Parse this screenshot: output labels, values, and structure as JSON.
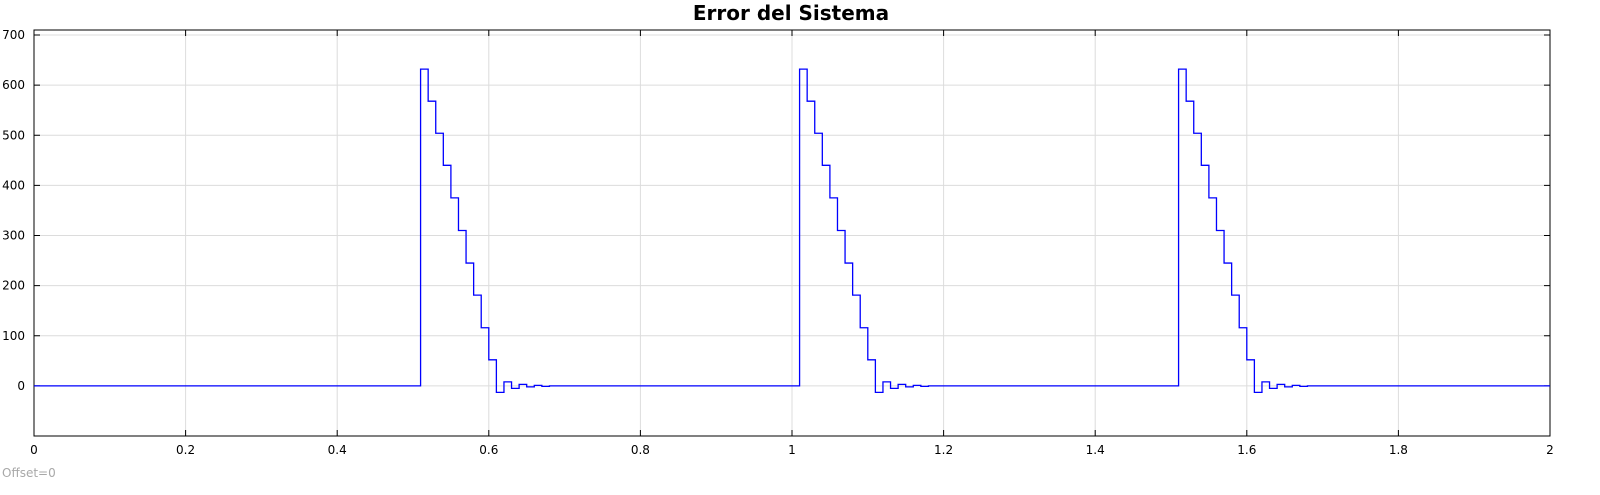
{
  "chart_data": {
    "type": "line",
    "title": "Error del Sistema",
    "xlabel": "",
    "ylabel": "",
    "xlim": [
      0,
      2
    ],
    "ylim": [
      -100,
      710
    ],
    "x_ticks": [
      0,
      0.2,
      0.4,
      0.6,
      0.8,
      1,
      1.2,
      1.4,
      1.6,
      1.8,
      2
    ],
    "x_tick_labels": [
      "0",
      "0.2",
      "0.4",
      "0.6",
      "0.8",
      "1",
      "1.2",
      "1.4",
      "1.6",
      "1.8",
      "2"
    ],
    "y_ticks": [
      0,
      100,
      200,
      300,
      400,
      500,
      600,
      700
    ],
    "y_tick_labels": [
      "0",
      "100",
      "200",
      "300",
      "400",
      "500",
      "600",
      "700"
    ],
    "grid": true,
    "legend": "none",
    "step": true,
    "offset_note": "Offset=0",
    "series": [
      {
        "color": "#0000ff",
        "x": [
          0,
          0.51,
          0.52,
          0.53,
          0.54,
          0.55,
          0.56,
          0.57,
          0.58,
          0.59,
          0.6,
          0.61,
          0.62,
          0.63,
          0.64,
          0.65,
          0.66,
          0.67,
          0.68,
          1.01,
          1.02,
          1.03,
          1.04,
          1.05,
          1.06,
          1.07,
          1.08,
          1.09,
          1.1,
          1.11,
          1.12,
          1.13,
          1.14,
          1.15,
          1.16,
          1.17,
          1.18,
          1.51,
          1.52,
          1.53,
          1.54,
          1.55,
          1.56,
          1.57,
          1.58,
          1.59,
          1.6,
          1.61,
          1.62,
          1.63,
          1.64,
          1.65,
          1.66,
          1.67,
          1.68,
          2
        ],
        "y": [
          0,
          632,
          568,
          504,
          440,
          375,
          310,
          245,
          181,
          116,
          52,
          -13,
          8,
          -5,
          3,
          -2,
          1,
          -1,
          0,
          632,
          568,
          504,
          440,
          375,
          310,
          245,
          181,
          116,
          52,
          -13,
          8,
          -5,
          3,
          -2,
          1,
          -1,
          0,
          632,
          568,
          504,
          440,
          375,
          310,
          245,
          181,
          116,
          52,
          -13,
          8,
          -5,
          3,
          -2,
          1,
          -1,
          0,
          0
        ]
      }
    ]
  }
}
